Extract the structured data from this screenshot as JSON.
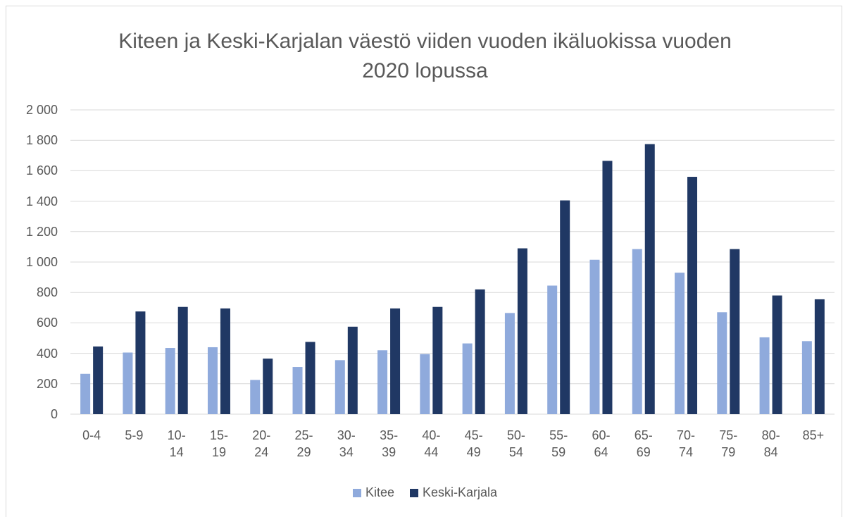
{
  "chart_data": {
    "type": "bar",
    "title": "Kiteen ja Keski-Karjalan väestö viiden vuoden ikäluokissa vuoden 2020 lopussa",
    "categories": [
      "0-4",
      "5-9",
      "10-14",
      "15-19",
      "20-24",
      "25-29",
      "30-34",
      "35-39",
      "40-44",
      "45-49",
      "50-54",
      "55-59",
      "60-64",
      "65-69",
      "70-74",
      "75-79",
      "80-84",
      "85+"
    ],
    "series": [
      {
        "name": "Kitee",
        "color": "#8faadc",
        "values": [
          265,
          405,
          435,
          440,
          225,
          310,
          355,
          420,
          395,
          465,
          665,
          845,
          1015,
          1085,
          930,
          670,
          505,
          480
        ]
      },
      {
        "name": "Keski-Karjala",
        "color": "#203864",
        "values": [
          445,
          675,
          705,
          695,
          365,
          475,
          575,
          695,
          705,
          820,
          1090,
          1405,
          1665,
          1775,
          1560,
          1085,
          780,
          755
        ]
      }
    ],
    "ylim": [
      0,
      2000
    ],
    "yticks": [
      0,
      200,
      400,
      600,
      800,
      {
        "value": 1000,
        "label": "1 000"
      },
      {
        "value": 1200,
        "label": "1 200"
      },
      {
        "value": 1400,
        "label": "1 400"
      },
      {
        "value": 1600,
        "label": "1 600"
      },
      {
        "value": 1800,
        "label": "1 800"
      },
      {
        "value": 2000,
        "label": "2 000"
      }
    ],
    "grid": true,
    "legend": "bottom"
  }
}
